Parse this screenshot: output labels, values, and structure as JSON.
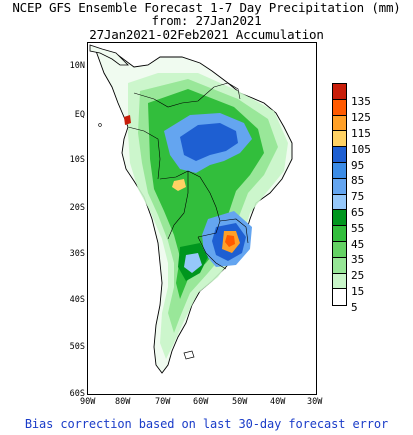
{
  "title": {
    "line1": "NCEP GFS Ensemble Forecast 1-7 Day Precipitation (mm)",
    "line2": "from: 27Jan2021",
    "line3": "27Jan2021-02Feb2021 Accumulation"
  },
  "map": {
    "lat_labels": [
      "10N",
      "EQ",
      "10S",
      "20S",
      "30S",
      "40S",
      "50S",
      "60S"
    ],
    "lon_labels": [
      "90W",
      "80W",
      "70W",
      "60W",
      "50W",
      "40W",
      "30W"
    ]
  },
  "legend": {
    "labels": [
      "135",
      "125",
      "115",
      "105",
      "95",
      "85",
      "75",
      "65",
      "55",
      "45",
      "35",
      "25",
      "15",
      "5"
    ],
    "colors": [
      "#c81e0a",
      "#ff5a00",
      "#ffa028",
      "#ffd264",
      "#1e5fd2",
      "#3c8ce6",
      "#64a5f0",
      "#96c8fa",
      "#00961e",
      "#32be3c",
      "#64d264",
      "#96e696",
      "#c8f5c8",
      "#ffffff"
    ]
  },
  "footer": "Bias correction based on last 30-day forecast error"
}
